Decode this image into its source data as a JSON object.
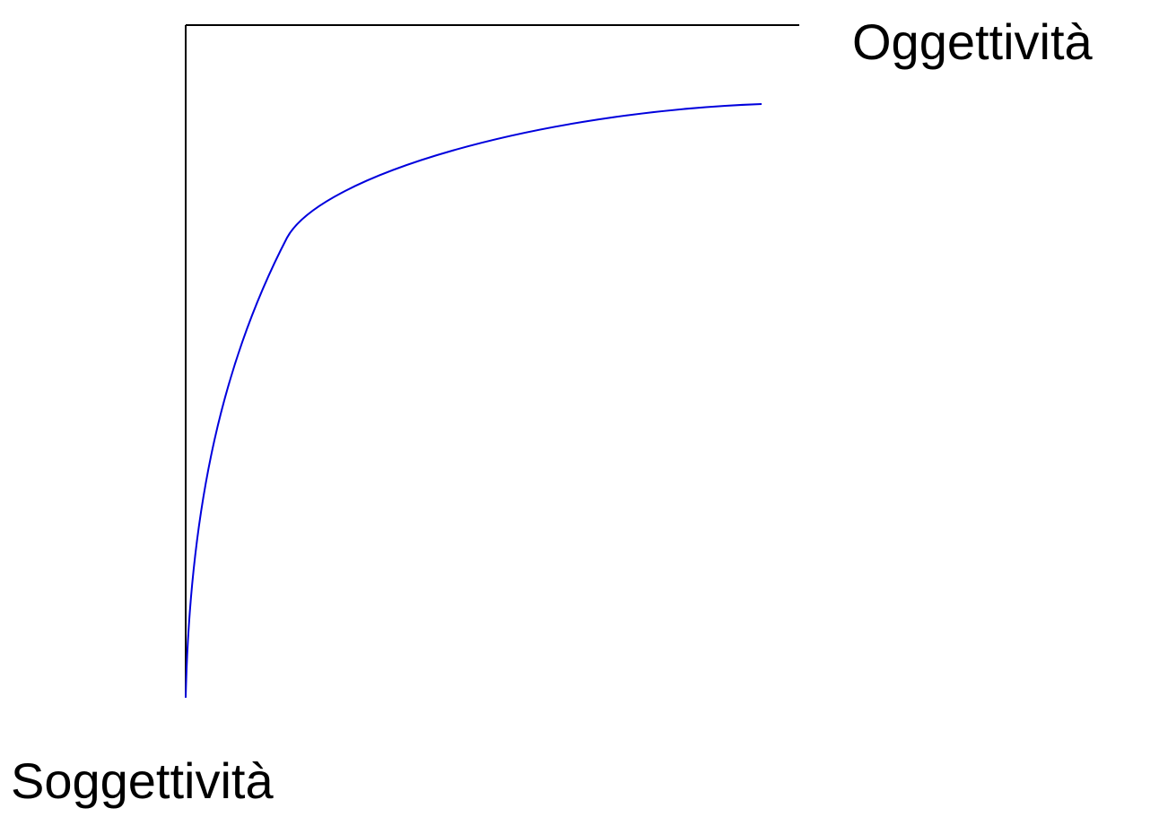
{
  "labels": {
    "top": "Oggettività",
    "bottom": "Soggettività"
  }
}
